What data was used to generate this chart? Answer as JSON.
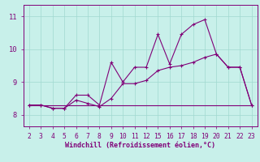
{
  "xlabel": "Windchill (Refroidissement éolien,°C)",
  "bg_color": "#c8f0ea",
  "line_color": "#800078",
  "grid_color": "#a0d8d0",
  "x_labels": [
    "2",
    "3",
    "4",
    "5",
    "6",
    "7",
    "8",
    "9",
    "10",
    "11",
    "12",
    "15",
    "16",
    "17",
    "18",
    "19",
    "20",
    "21",
    "22",
    "23"
  ],
  "y_ticks": [
    8,
    9,
    10,
    11
  ],
  "ylim": [
    7.65,
    11.35
  ],
  "line1_y": [
    8.3,
    8.3,
    8.2,
    8.2,
    8.6,
    8.6,
    8.3,
    9.6,
    9.0,
    9.45,
    9.45,
    10.45,
    9.55,
    10.45,
    10.75,
    10.9,
    9.85,
    9.45,
    9.45,
    8.3
  ],
  "line2_y": [
    8.3,
    8.3,
    8.2,
    8.2,
    8.45,
    8.35,
    8.25,
    8.5,
    8.95,
    8.95,
    9.05,
    9.35,
    9.45,
    9.5,
    9.6,
    9.75,
    9.85,
    9.45,
    9.45,
    8.3
  ],
  "line3_y": [
    8.3,
    8.3,
    8.3,
    8.3,
    8.3,
    8.3,
    8.3,
    8.3,
    8.3,
    8.3,
    8.3,
    8.3,
    8.3,
    8.3,
    8.3,
    8.3,
    8.3,
    8.3,
    8.3,
    8.3
  ],
  "xlabel_fontsize": 6.0,
  "tick_fontsize": 5.8
}
